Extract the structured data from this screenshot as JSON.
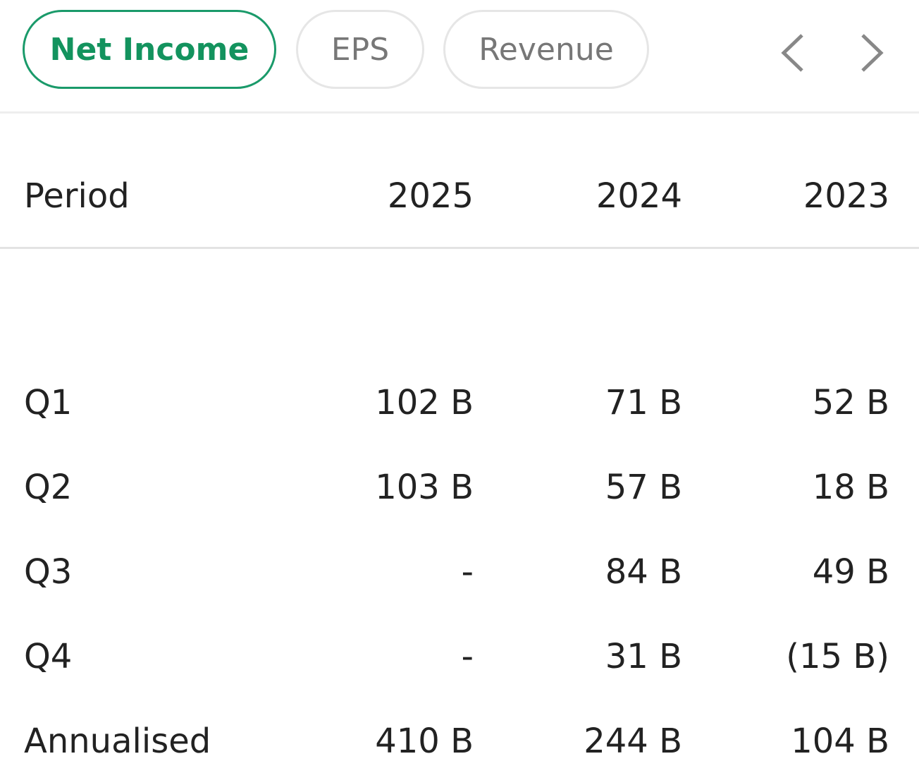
{
  "tabs": [
    "Net Income",
    "EPS",
    "Revenue"
  ],
  "table": {
    "header": [
      "Period",
      "2025",
      "2024",
      "2023"
    ],
    "rows": [
      [
        "Q1",
        "102 B",
        "71 B",
        "52 B"
      ],
      [
        "Q2",
        "103 B",
        "57 B",
        "18 B"
      ],
      [
        "Q3",
        "-",
        "84 B",
        "49 B"
      ],
      [
        "Q4",
        "-",
        "31 B",
        "(15 B)"
      ],
      [
        "Annualised",
        "410 B",
        "244 B",
        "104 B"
      ]
    ]
  }
}
